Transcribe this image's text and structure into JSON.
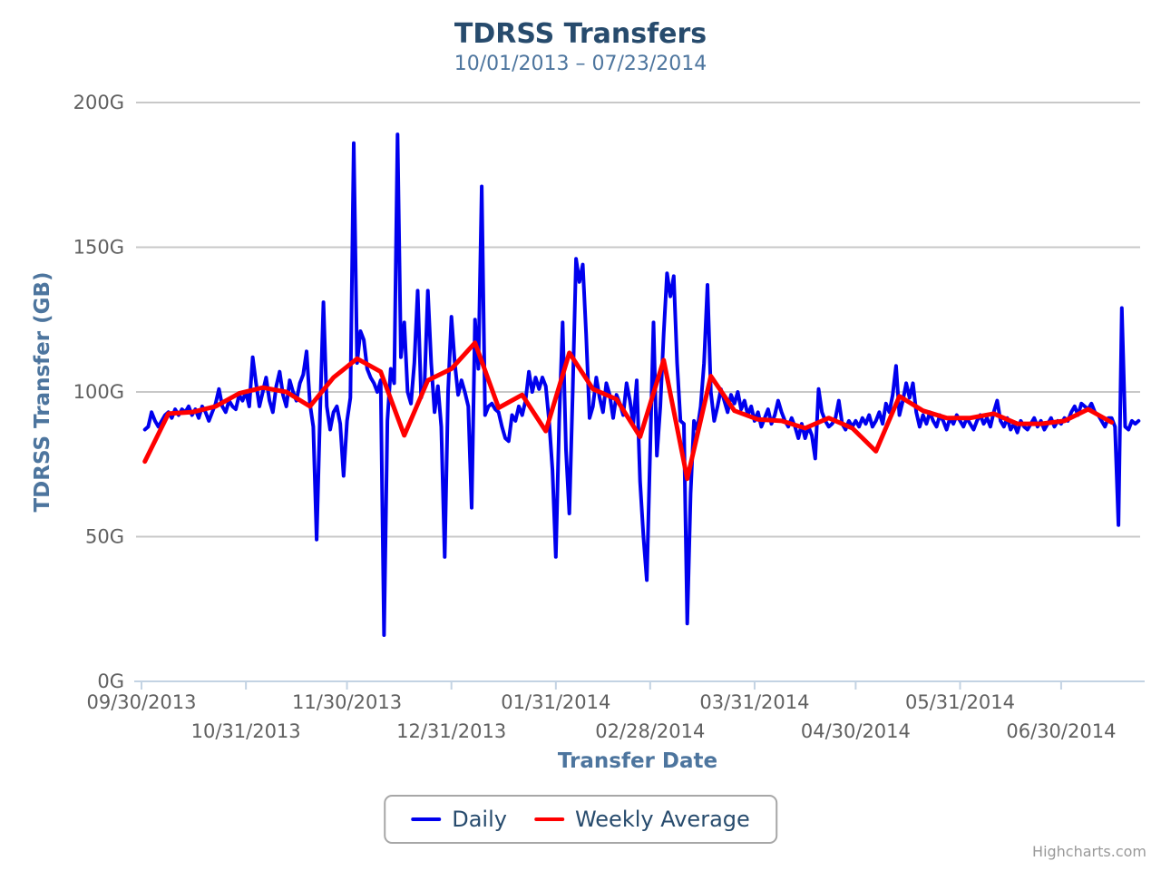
{
  "chart": {
    "title": "TDRSS Transfers",
    "subtitle": "10/01/2013 – 07/23/2014",
    "credit": "Highcharts.com"
  },
  "chart_data": {
    "type": "line",
    "title": "TDRSS Transfers",
    "subtitle": "10/01/2013 – 07/23/2014",
    "xlabel": "Transfer Date",
    "ylabel": "TDRSS Transfer (GB)",
    "ylim": [
      0,
      200
    ],
    "grid": "horizontal-only",
    "legend_position": "bottom-center",
    "colors": {
      "grid": "#c8c8c8",
      "axis_line": "#c3d3e3",
      "tick_label": "#606060",
      "title": "#274b6d",
      "subtitle": "#4d759e",
      "axis_title": "#4d759e",
      "legend_text": "#274b6d",
      "credit": "#999999"
    },
    "yticks": [
      {
        "value": 0,
        "label": "0G"
      },
      {
        "value": 50,
        "label": "50G"
      },
      {
        "value": 100,
        "label": "100G"
      },
      {
        "value": 150,
        "label": "150G"
      },
      {
        "value": 200,
        "label": "200G"
      }
    ],
    "xticks": [
      {
        "label": "09/30/2013",
        "day": 0
      },
      {
        "label": "10/31/2013",
        "day": 31
      },
      {
        "label": "11/30/2013",
        "day": 61
      },
      {
        "label": "12/31/2013",
        "day": 92
      },
      {
        "label": "01/31/2014",
        "day": 123
      },
      {
        "label": "02/28/2014",
        "day": 151
      },
      {
        "label": "03/31/2014",
        "day": 182
      },
      {
        "label": "04/30/2014",
        "day": 212
      },
      {
        "label": "05/31/2014",
        "day": 243
      },
      {
        "label": "06/30/2014",
        "day": 273
      }
    ],
    "series": [
      {
        "name": "Daily",
        "color": "#0000ee",
        "start_date": "10/01/2013",
        "interval_days": 1,
        "start_day": 1,
        "unit": "GB",
        "values": [
          87,
          88,
          93,
          90,
          88,
          90,
          92,
          93,
          91,
          94,
          92,
          94,
          93,
          95,
          92,
          94,
          91,
          95,
          93,
          90,
          93,
          96,
          101,
          95,
          93,
          97,
          95,
          94,
          99,
          97,
          100,
          95,
          112,
          103,
          95,
          100,
          105,
          97,
          93,
          102,
          107,
          99,
          95,
          104,
          100,
          97,
          103,
          106,
          114,
          96,
          88,
          49,
          92,
          131,
          95,
          87,
          93,
          95,
          89,
          71,
          90,
          98,
          186,
          110,
          121,
          118,
          108,
          105,
          103,
          100,
          104,
          16,
          90,
          108,
          103,
          189,
          112,
          124,
          100,
          96,
          110,
          135,
          98,
          102,
          135,
          110,
          93,
          102,
          88,
          43,
          100,
          126,
          110,
          99,
          104,
          100,
          95,
          60,
          125,
          108,
          171,
          92,
          95,
          96,
          94,
          93,
          88,
          84,
          83,
          92,
          90,
          95,
          92,
          97,
          107,
          100,
          105,
          101,
          105,
          102,
          90,
          73,
          43,
          90,
          124,
          80,
          58,
          100,
          146,
          138,
          144,
          120,
          91,
          95,
          105,
          98,
          93,
          103,
          99,
          91,
          99,
          96,
          92,
          103,
          97,
          89,
          104,
          69,
          50,
          35,
          80,
          124,
          78,
          95,
          120,
          141,
          133,
          140,
          110,
          90,
          89,
          20,
          65,
          90,
          87,
          95,
          110,
          137,
          100,
          90,
          95,
          101,
          97,
          93,
          99,
          96,
          100,
          94,
          97,
          92,
          95,
          90,
          93,
          88,
          91,
          94,
          89,
          92,
          97,
          93,
          90,
          88,
          91,
          88,
          84,
          89,
          84,
          88,
          85,
          77,
          101,
          93,
          90,
          88,
          89,
          91,
          97,
          89,
          87,
          90,
          88,
          90,
          88,
          91,
          89,
          92,
          88,
          90,
          93,
          89,
          96,
          93,
          99,
          109,
          92,
          97,
          103,
          98,
          103,
          93,
          88,
          92,
          89,
          93,
          90,
          88,
          92,
          90,
          87,
          91,
          89,
          92,
          90,
          88,
          91,
          89,
          87,
          90,
          92,
          89,
          91,
          88,
          93,
          97,
          90,
          88,
          91,
          87,
          89,
          86,
          90,
          88,
          87,
          89,
          91,
          88,
          90,
          87,
          89,
          91,
          88,
          90,
          89,
          91,
          90,
          93,
          95,
          92,
          96,
          95,
          94,
          96,
          93,
          92,
          90,
          88,
          91,
          91,
          88,
          54,
          129,
          88,
          87,
          90,
          89,
          90
        ]
      },
      {
        "name": "Weekly Average",
        "color": "#ff0000",
        "start_date": "10/01/2013",
        "interval_days": 7,
        "start_day": 1,
        "unit": "GB",
        "values": [
          76,
          92.5,
          93,
          95,
          99.5,
          101.5,
          100,
          95,
          105,
          111.5,
          107,
          85,
          104,
          108,
          117,
          94.5,
          99,
          86.5,
          113.5,
          101,
          97.5,
          84.5,
          111,
          70,
          105.5,
          93.5,
          90.5,
          90,
          87.5,
          91,
          87.5,
          79.5,
          98.5,
          93.5,
          91,
          91,
          92.5,
          89,
          89,
          90,
          94,
          89.5
        ]
      }
    ]
  }
}
